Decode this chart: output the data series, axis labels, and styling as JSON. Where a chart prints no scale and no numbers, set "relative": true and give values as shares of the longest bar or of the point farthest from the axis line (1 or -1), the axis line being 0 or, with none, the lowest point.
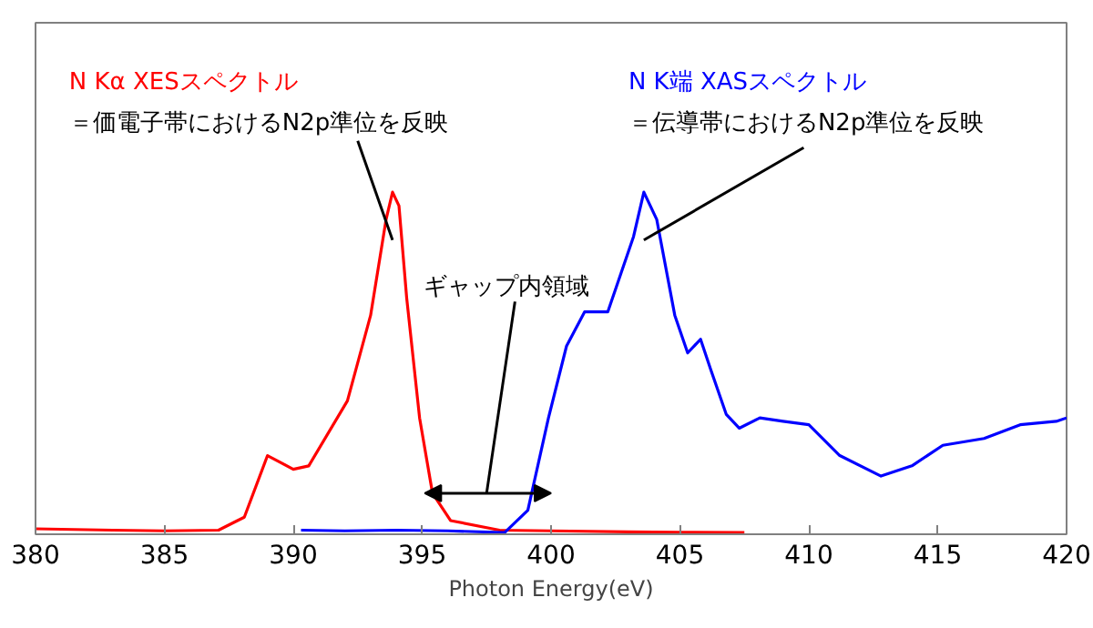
{
  "chart_data": {
    "type": "line",
    "relative": true,
    "xlabel": "Photon Energy(eV)",
    "xlim": [
      380,
      420
    ],
    "xticks": [
      380,
      385,
      390,
      395,
      400,
      405,
      410,
      415,
      420
    ],
    "grid": false,
    "series": [
      {
        "name": "N Kα XESスペクトル",
        "color": "#ff0000",
        "x": [
          380,
          383,
          385,
          387.1,
          388.1,
          389.0,
          390.0,
          390.6,
          392.1,
          393.0,
          393.6,
          393.85,
          394.1,
          394.4,
          394.9,
          395.4,
          396.1,
          398.0,
          400,
          403,
          405,
          407.5
        ],
        "values": [
          0.016,
          0.012,
          0.01,
          0.012,
          0.05,
          0.23,
          0.19,
          0.2,
          0.39,
          0.64,
          0.92,
          1.0,
          0.96,
          0.69,
          0.34,
          0.12,
          0.04,
          0.012,
          0.01,
          0.007,
          0.006,
          0.005
        ]
      },
      {
        "name": "N K端 XASスペクトル",
        "color": "#0000ff",
        "x": [
          390.3,
          392,
          394,
          396,
          398.2,
          399.1,
          399.9,
          400.6,
          401.3,
          402.2,
          403.2,
          403.6,
          404.1,
          404.8,
          405.3,
          405.8,
          406.2,
          406.8,
          407.3,
          408.1,
          409.0,
          410.0,
          411.2,
          412.8,
          414.0,
          415.2,
          416.8,
          418.2,
          419.6,
          420.0
        ],
        "values": [
          0.012,
          0.01,
          0.012,
          0.01,
          0.005,
          0.07,
          0.34,
          0.55,
          0.65,
          0.65,
          0.87,
          1.0,
          0.92,
          0.64,
          0.53,
          0.57,
          0.48,
          0.35,
          0.31,
          0.34,
          0.33,
          0.32,
          0.23,
          0.17,
          0.2,
          0.26,
          0.28,
          0.32,
          0.33,
          0.34
        ]
      }
    ],
    "annotations": [
      "＝価電子帯におけるN2p準位を反映",
      "＝伝導帯におけるN2p準位を反映",
      "ギャップ内領域"
    ]
  }
}
